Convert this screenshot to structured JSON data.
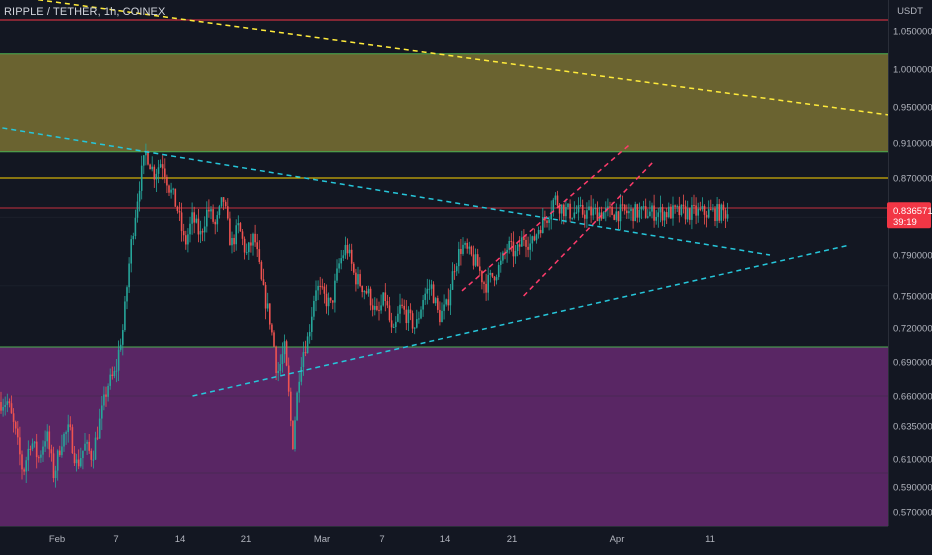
{
  "header": {
    "symbol_title": "RIPPLE / TETHER, 1h, COINEX"
  },
  "price_axis": {
    "currency_label": "USDT",
    "ticks": [
      "1.050000",
      "1.000000",
      "0.950000",
      "0.910000",
      "0.870000",
      "0.790000",
      "0.750000",
      "0.720000",
      "0.690000",
      "0.660000",
      "0.635000",
      "0.610000",
      "0.590000",
      "0.570000"
    ],
    "current_price": "0.836571",
    "countdown": "39:19"
  },
  "time_axis": {
    "ticks": [
      "Feb",
      "7",
      "14",
      "21",
      "Mar",
      "7",
      "14",
      "21",
      "Apr",
      "11"
    ]
  },
  "colors": {
    "background": "#131722",
    "supply_zone": "#7a7132",
    "demand_zone": "#6b2a76",
    "upper_trendline": "#ffeb3b",
    "wedge_lines": "#ff3b6b",
    "triangle_lines": "#26c6da",
    "resistance_line": "#f23645",
    "zone_border": "#4caf50",
    "price_line": "#ffd600",
    "bull_candle": "#26a69a",
    "bear_candle": "#ef5350",
    "price_tag": "#f23645"
  },
  "chart_data": {
    "type": "candlestick",
    "symbol": "RIPPLE / TETHER",
    "interval": "1h",
    "exchange": "COINEX",
    "currency": "USDT",
    "x_axis_labels": [
      "Feb",
      "7",
      "14",
      "21",
      "Mar",
      "7",
      "14",
      "21",
      "Apr",
      "11"
    ],
    "y_axis_ticks": [
      1.05,
      1.0,
      0.95,
      0.91,
      0.87,
      0.79,
      0.75,
      0.72,
      0.69,
      0.66,
      0.635,
      0.61,
      0.59,
      0.57
    ],
    "current_price": 0.836571,
    "price_path": [
      [
        1,
        0.655
      ],
      [
        2,
        0.63
      ],
      [
        3,
        0.6
      ],
      [
        4,
        0.625
      ],
      [
        5,
        0.61
      ],
      [
        6,
        0.63
      ],
      [
        7,
        0.598
      ],
      [
        8,
        0.625
      ],
      [
        9,
        0.632
      ],
      [
        10,
        0.605
      ],
      [
        11,
        0.62
      ],
      [
        12,
        0.612
      ],
      [
        13,
        0.64
      ],
      [
        14,
        0.67
      ],
      [
        15,
        0.68
      ],
      [
        16,
        0.72
      ],
      [
        17,
        0.8
      ],
      [
        18,
        0.86
      ],
      [
        19,
        0.9
      ],
      [
        20,
        0.875
      ],
      [
        21,
        0.89
      ],
      [
        22,
        0.86
      ],
      [
        23,
        0.84
      ],
      [
        24,
        0.8
      ],
      [
        25,
        0.83
      ],
      [
        26,
        0.81
      ],
      [
        27,
        0.84
      ],
      [
        28,
        0.82
      ],
      [
        29,
        0.85
      ],
      [
        30,
        0.8
      ],
      [
        31,
        0.82
      ],
      [
        32,
        0.79
      ],
      [
        33,
        0.81
      ],
      [
        34,
        0.76
      ],
      [
        35,
        0.73
      ],
      [
        36,
        0.68
      ],
      [
        37,
        0.7
      ],
      [
        38,
        0.62
      ],
      [
        39,
        0.69
      ],
      [
        40,
        0.71
      ],
      [
        41,
        0.76
      ],
      [
        42,
        0.75
      ],
      [
        43,
        0.74
      ],
      [
        44,
        0.78
      ],
      [
        45,
        0.8
      ],
      [
        46,
        0.77
      ],
      [
        47,
        0.76
      ],
      [
        48,
        0.75
      ],
      [
        49,
        0.73
      ],
      [
        50,
        0.75
      ],
      [
        51,
        0.71
      ],
      [
        52,
        0.74
      ],
      [
        53,
        0.73
      ],
      [
        54,
        0.72
      ],
      [
        55,
        0.75
      ],
      [
        56,
        0.76
      ],
      [
        57,
        0.73
      ],
      [
        58,
        0.74
      ],
      [
        59,
        0.78
      ],
      [
        60,
        0.8
      ],
      [
        61,
        0.79
      ],
      [
        62,
        0.78
      ],
      [
        63,
        0.76
      ],
      [
        64,
        0.77
      ],
      [
        65,
        0.78
      ],
      [
        66,
        0.8
      ],
      [
        67,
        0.79
      ],
      [
        68,
        0.81
      ],
      [
        69,
        0.8
      ],
      [
        70,
        0.82
      ],
      [
        71,
        0.83
      ],
      [
        72,
        0.85
      ],
      [
        73,
        0.84
      ],
      [
        74,
        0.835
      ]
    ],
    "zones": [
      {
        "from": 0.9,
        "to": 1.02
      },
      {
        "from": 0.53,
        "to": 0.7
      }
    ],
    "horizontal_lines": [
      0.87,
      0.84,
      1.07,
      0.7
    ],
    "trendlines": [
      {
        "from": [
          -2,
          1.12
        ],
        "to": [
          125,
          0.93
        ]
      },
      {
        "from": [
          -2,
          0.93
        ],
        "to": [
          100,
          0.79
        ]
      },
      {
        "from": [
          25,
          0.66
        ],
        "to": [
          110,
          0.8
        ]
      },
      {
        "from": [
          60,
          0.755
        ],
        "to": [
          82,
          0.91
        ]
      },
      {
        "from": [
          68,
          0.75
        ],
        "to": [
          85,
          0.89
        ]
      }
    ]
  }
}
